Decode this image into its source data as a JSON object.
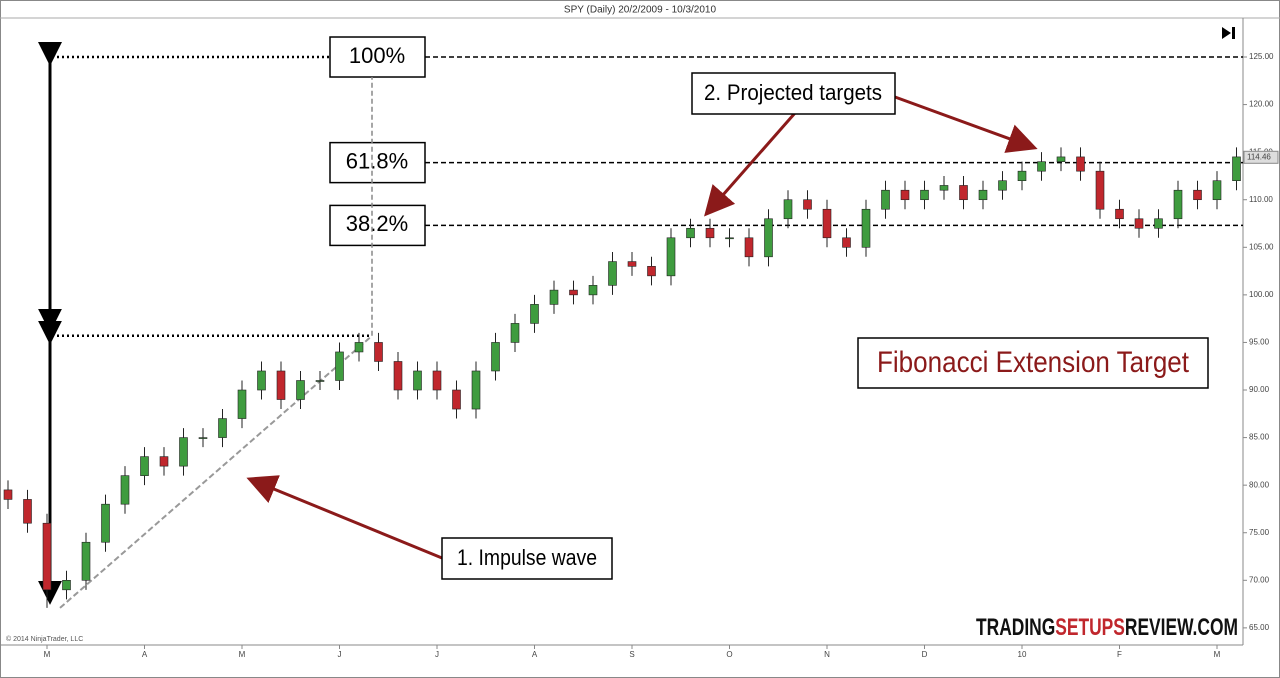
{
  "chart_data": {
    "type": "candlestick",
    "title": "SPY (Daily)  20/2/2009 - 10/3/2010",
    "categories": [
      null,
      null,
      "M",
      null,
      null,
      null,
      null,
      "A",
      null,
      null,
      null,
      null,
      "M",
      null,
      null,
      null,
      null,
      "J",
      null,
      null,
      null,
      null,
      "J",
      null,
      null,
      null,
      null,
      "A",
      null,
      null,
      null,
      null,
      "S",
      null,
      null,
      null,
      null,
      "O",
      null,
      null,
      null,
      null,
      "N",
      null,
      null,
      null,
      null,
      "D",
      null,
      null,
      null,
      null,
      "10",
      null,
      null,
      null,
      null,
      "F",
      null,
      null,
      null,
      null,
      "M",
      null
    ],
    "open": [
      79.5,
      78.5,
      76,
      69,
      70,
      74,
      78,
      81,
      83,
      82,
      85,
      85,
      87,
      90,
      92,
      89,
      91,
      91,
      94,
      95,
      93,
      90,
      92,
      90,
      88,
      92,
      95,
      97,
      99,
      100.5,
      100,
      101,
      103.5,
      103,
      102,
      106,
      107,
      106,
      106,
      104,
      108,
      110,
      109,
      106,
      105,
      109,
      111,
      110,
      111,
      111.5,
      110,
      111,
      112,
      113,
      114,
      114.5,
      113,
      109,
      108,
      107,
      108,
      111,
      110,
      112
    ],
    "high": [
      80.5,
      79.5,
      77,
      71,
      75,
      79,
      82,
      84,
      84,
      86,
      86,
      88,
      91,
      93,
      93,
      92,
      92,
      95,
      96,
      96,
      94,
      93,
      93,
      91,
      93,
      96,
      98,
      100,
      101.5,
      101.5,
      102,
      104.5,
      104.5,
      104,
      107,
      108,
      108,
      107,
      107,
      109,
      111,
      111,
      110,
      107,
      110,
      112,
      112,
      112,
      112.5,
      112.5,
      112,
      113,
      114,
      115,
      115.5,
      115.5,
      114,
      110,
      109,
      109,
      112,
      112,
      113,
      115.5
    ],
    "low": [
      77.5,
      75,
      67.1,
      68,
      69,
      73,
      77,
      80,
      81,
      81,
      84,
      84,
      86,
      89,
      88,
      88,
      90,
      90,
      93,
      92,
      89,
      89,
      89,
      87,
      87,
      91,
      94,
      96,
      98,
      99,
      99,
      100,
      102,
      101,
      101,
      105,
      105,
      105,
      103,
      103,
      107,
      108,
      105,
      104,
      104,
      108,
      109,
      109,
      110,
      109,
      109,
      110,
      111,
      112,
      113,
      112,
      108,
      107,
      106,
      106,
      107,
      109,
      109,
      111
    ],
    "close": [
      78.5,
      76,
      69,
      70,
      74,
      78,
      81,
      83,
      82,
      85,
      85,
      87,
      90,
      92,
      89,
      91,
      91,
      94,
      95,
      93,
      90,
      92,
      90,
      88,
      92,
      95,
      97,
      99,
      100.5,
      100,
      101,
      103.5,
      103,
      102,
      106,
      107,
      106,
      106,
      104,
      108,
      110,
      109,
      106,
      105,
      109,
      111,
      110,
      111,
      111.5,
      110,
      111,
      112,
      113,
      114,
      114.5,
      113,
      109,
      108,
      107,
      108,
      111,
      110,
      112,
      114.5
    ],
    "up_color": "#3f9c3f",
    "down_color": "#c0272d",
    "ylim": [
      63.2,
      129.1
    ],
    "yticks": [
      {
        "value": 65,
        "label": "65.00"
      },
      {
        "value": 70,
        "label": "70.00"
      },
      {
        "value": 75,
        "label": "75.00"
      },
      {
        "value": 80,
        "label": "80.00"
      },
      {
        "value": 85,
        "label": "85.00"
      },
      {
        "value": 90,
        "label": "90.00"
      },
      {
        "value": 95,
        "label": "95.00"
      },
      {
        "value": 100,
        "label": "100.00"
      },
      {
        "value": 105,
        "label": "105.00"
      },
      {
        "value": 110,
        "label": "110.00"
      },
      {
        "value": 115,
        "label": "115.00"
      },
      {
        "value": 120,
        "label": "120.00"
      },
      {
        "value": 125,
        "label": "125.00"
      }
    ],
    "fib_levels": [
      {
        "value": 125,
        "label": "100%"
      },
      {
        "value": 113.9,
        "label": "61.8%"
      },
      {
        "value": 107.3,
        "label": "38.2%"
      }
    ],
    "impulse": {
      "low": 67.1,
      "high": 95.7
    },
    "last_price": 114.46,
    "annotations": [
      "1. Impulse wave",
      "2. Projected targets"
    ],
    "headline": "Fibonacci Extension Target",
    "watermark": [
      "TRADING",
      "SETUPS",
      "REVIEW.COM"
    ],
    "copyright": "© 2014 NinjaTrader, LLC"
  }
}
